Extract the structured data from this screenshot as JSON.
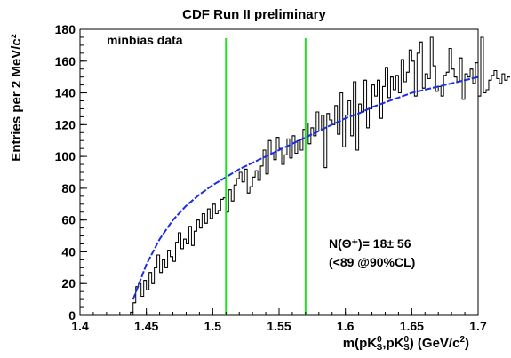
{
  "chart_data": {
    "type": "line",
    "title": "CDF Run II preliminary",
    "ylabel": "Entries per 2 MeV/c²",
    "xlabel_parts": [
      "m(pK",
      "0",
      "S",
      ",",
      "pK",
      "0",
      "S",
      ") (GeV/c",
      "2",
      ")"
    ],
    "xlim": [
      1.4,
      1.7
    ],
    "ylim": [
      0,
      180
    ],
    "x_ticks": [
      "1.4",
      "1.45",
      "1.5",
      "1.55",
      "1.6",
      "1.65",
      "1.7"
    ],
    "y_ticks": [
      "0",
      "20",
      "40",
      "60",
      "80",
      "100",
      "120",
      "140",
      "160",
      "180"
    ],
    "annotation_top_left": "minbias data",
    "annotation_yield": "N(Θ⁺)= 18± 56",
    "annotation_limit": "(<89 @90%CL)",
    "signal_window_lines_x": [
      1.51,
      1.57
    ],
    "series": [
      {
        "style": "histogram",
        "bin_width": 0.002,
        "x_start": 1.438,
        "values": [
          2,
          8,
          18,
          20,
          12,
          22,
          16,
          27,
          20,
          30,
          38,
          27,
          35,
          30,
          41,
          37,
          34,
          46,
          52,
          42,
          48,
          45,
          56,
          44,
          53,
          60,
          55,
          64,
          58,
          67,
          61,
          70,
          64,
          66,
          73,
          74,
          65,
          79,
          72,
          82,
          86,
          90,
          84,
          92,
          77,
          81,
          87,
          91,
          85,
          94,
          104,
          89,
          110,
          102,
          98,
          112,
          105,
          95,
          101,
          111,
          99,
          113,
          102,
          110,
          104,
          117,
          121,
          108,
          118,
          113,
          128,
          116,
          126,
          93,
          127,
          123,
          120,
          132,
          114,
          140,
          106,
          126,
          135,
          113,
          147,
          104,
          133,
          128,
          148,
          118,
          130,
          145,
          138,
          148,
          124,
          144,
          156,
          137,
          150,
          142,
          151,
          140,
          161,
          147,
          153,
          167,
          160,
          138,
          165,
          172,
          143,
          152,
          149,
          175,
          157,
          141,
          144,
          138,
          151,
          153,
          168,
          155,
          150,
          147,
          162,
          136,
          152,
          150,
          155,
          146,
          159,
          138,
          175,
          140,
          142,
          148,
          151,
          154,
          149,
          146,
          152,
          148,
          150
        ]
      },
      {
        "style": "fit",
        "x": [
          1.44,
          1.45,
          1.46,
          1.47,
          1.48,
          1.49,
          1.5,
          1.51,
          1.52,
          1.53,
          1.54,
          1.55,
          1.56,
          1.57,
          1.58,
          1.59,
          1.6,
          1.61,
          1.62,
          1.63,
          1.64,
          1.65,
          1.66,
          1.67,
          1.68,
          1.69,
          1.7
        ],
        "y": [
          10,
          32,
          48,
          60,
          69,
          76,
          82,
          87,
          92,
          96,
          100,
          104,
          108,
          112,
          116,
          120,
          124,
          127,
          131,
          134,
          137,
          140,
          142,
          144,
          146,
          148,
          150
        ]
      }
    ],
    "colors": {
      "histogram": "#000000",
      "fit": "#1a2ee6",
      "signal_lines": "#22e022",
      "axes": "#000000"
    }
  }
}
